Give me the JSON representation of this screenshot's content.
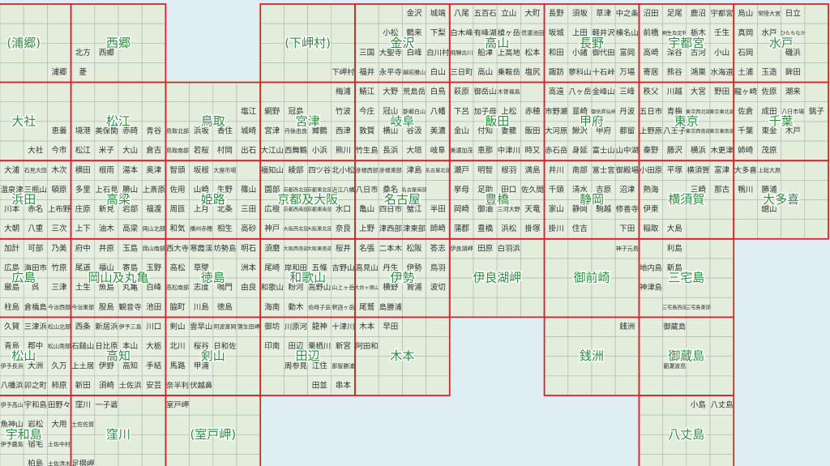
{
  "map_index": {
    "sheets": [
      [
        "(浦郷)",
        "西郷",
        null,
        "(下岬村)",
        "金沢",
        "高山",
        "長野",
        "宇都宮",
        "水戸"
      ],
      [
        "大社",
        "松江",
        "鳥取",
        "宮津",
        "岐阜",
        "飯田",
        "甲府",
        "東京",
        "千葉"
      ],
      [
        "浜田",
        "高梁",
        "姫路",
        "京都及大阪",
        "名古屋",
        "豊橋",
        "静岡",
        "横須賀",
        "大多喜"
      ],
      [
        "広島",
        "岡山及丸亀",
        "徳島",
        "和歌山",
        "伊勢",
        "伊良湖岬",
        "御前崎",
        "三宅島",
        null
      ],
      [
        "松山",
        "高知",
        "剣山",
        "田辺",
        "木本",
        null,
        "銭洲",
        "御蔵島",
        null
      ],
      [
        "宇和島",
        "窪川",
        "(室戸岬)",
        null,
        null,
        null,
        null,
        "八丈島",
        null
      ]
    ],
    "cells": [
      [
        null,
        null,
        null,
        null,
        null,
        null,
        null,
        null,
        null,
        null,
        null,
        null,
        null,
        null,
        null,
        null,
        null,
        "金沢",
        "城端",
        "八尾",
        "五百石",
        "立山",
        "大町",
        "長野",
        "須坂",
        "草津",
        "中之条",
        "沼田",
        "足尾",
        "鹿沼",
        "宇都宮",
        "烏山",
        "常陸大宮",
        "日立",
        null
      ],
      [
        null,
        null,
        null,
        null,
        null,
        null,
        null,
        null,
        null,
        null,
        null,
        null,
        null,
        null,
        null,
        null,
        "小松",
        "鶴来",
        "下梨",
        "白木峰",
        "有峰湖",
        "槍ヶ岳",
        "信濃池田",
        "坂城",
        "上田",
        "軽井沢",
        "榛名山",
        "前橋",
        "桐生及足利",
        "栃木",
        "壬生",
        "真岡",
        "水戸",
        "ひたちなか",
        null
      ],
      [
        null,
        null,
        null,
        "北方",
        "西郷",
        null,
        null,
        null,
        null,
        null,
        null,
        null,
        null,
        null,
        null,
        "三国",
        "大聖寺",
        "白峰",
        "白川村",
        "飛騨古川",
        "船津",
        "上高地",
        "松本",
        "和田",
        "小諸",
        "御代田",
        "富岡",
        "高崎",
        "深谷",
        "古河",
        "小山",
        "石岡",
        null,
        "磯浜",
        null
      ],
      [
        null,
        null,
        "浦郷",
        "菱",
        null,
        null,
        null,
        null,
        null,
        null,
        null,
        null,
        null,
        null,
        "下岬村",
        "福井",
        "永平寺",
        "越前勝山",
        "白山",
        "三日町",
        "高山",
        "乗鞍岳",
        "塩尻",
        "諏訪",
        "蓼科山",
        "十石峠",
        "万場",
        "寄居",
        "熊谷",
        "鴻巣",
        "水海道",
        "土浦",
        "玉造",
        "鉾田",
        null
      ],
      [
        null,
        null,
        null,
        null,
        null,
        null,
        null,
        null,
        null,
        null,
        null,
        null,
        null,
        null,
        "梅浦",
        "鯖江",
        "大野",
        "荒島岳",
        "白鳥",
        "萩原",
        "御岳山",
        "木曽福島",
        null,
        "高遠",
        "八ヶ岳",
        "金峰山",
        "三峰",
        "秩父",
        "川越",
        "大宮",
        "野田",
        "龍ヶ崎",
        "佐原",
        "潮来",
        null
      ],
      [
        null,
        null,
        null,
        null,
        null,
        null,
        null,
        null,
        null,
        null,
        "塩江",
        "網野",
        "冠島",
        null,
        "竹波",
        "今庄",
        "冠山",
        "能郷白山",
        "八幡",
        "下呂",
        "加子母",
        "上松",
        "赤穂",
        "市野瀬",
        "韮崎",
        "御岳昇仙峡",
        "丹波",
        "五日市",
        "青梅",
        "東京西北部",
        "東京東北部",
        "佐倉",
        "成田",
        "八日市場",
        "銚子"
      ],
      [
        null,
        null,
        "恵曇",
        "境港",
        "美保関",
        "赤碕",
        "青谷",
        "鳥取北部",
        "浜坂",
        "香住",
        "城崎",
        "宮津",
        "丹後由良",
        "舞鶴",
        "西津",
        "敦賀",
        "横山",
        "谷汲",
        "美濃",
        "金山",
        "付知",
        "妻籠",
        "飯田",
        "大河原",
        "鰍沢",
        "甲府",
        "都留",
        "上野原",
        "八王子",
        "東京西南部",
        "東京東南部",
        "千葉",
        "東金",
        "木戸",
        null
      ],
      [
        null,
        "大社",
        "今市",
        "松江",
        "米子",
        "大山",
        "倉吉",
        "鳥取南部",
        "若桜",
        "村岡",
        "出石",
        "大江山",
        "西舞鶴",
        "小浜",
        "熊川",
        "竹生島",
        "長浜",
        "大垣",
        "岐阜",
        "美濃加茂",
        "恵那",
        "中津川",
        "時又",
        "赤石岳",
        "身延",
        "富士山",
        "山中湖",
        "秦野",
        "藤沢",
        "横浜",
        "木更津",
        "姉崎",
        "茂原",
        null,
        null
      ],
      [
        "大浦",
        "石見大田",
        "木次",
        "横田",
        "根雨",
        "湯本",
        "奥津",
        "智頭",
        "坂根",
        "大屋市場",
        null,
        "福知山",
        "綾部",
        "四ツ谷",
        "北小松",
        "彦根西部",
        "彦根東部",
        "津島",
        "名古屋北部",
        "瀬戸",
        "明智",
        "根羽",
        "満島",
        "井川",
        "南部",
        "富士宮",
        "御殿場",
        "小田原",
        "平塚",
        "横須賀",
        "富津",
        "大多喜",
        "上総大原",
        null,
        null
      ],
      [
        "温泉津",
        "三瓶山",
        "頓原",
        "多里",
        "上石見",
        "勝山",
        "上斎原",
        "佐用",
        "山崎",
        "生野",
        "篠山",
        "園部",
        "京都西北部",
        "京都東北部",
        "近江八幡",
        "八日市",
        "桑名",
        "名古屋南部",
        null,
        "挙母",
        "足助",
        "田口",
        "佐久間",
        "千頭",
        "清水",
        "吉原",
        "沼津",
        "熱海",
        null,
        "三崎",
        "那古",
        "鴨川",
        "勝浦",
        null,
        null
      ],
      [
        "川本",
        "赤名",
        "上布野",
        "庄原",
        "新見",
        "岩部",
        "福渡",
        "周匝",
        "上月",
        "北条",
        "三田",
        "広根",
        "京都西南部",
        "京都東南部",
        "水口",
        "亀山",
        "四日市",
        "蟹江",
        "半田",
        "岡崎",
        "御油",
        "三河大野",
        "天竜",
        "家山",
        "静岡",
        "駒越",
        "修善寺",
        "伊東",
        null,
        null,
        null,
        null,
        "館山",
        null,
        null
      ],
      [
        "大朝",
        "八重",
        "三次",
        "上下",
        "油木",
        "高梁",
        "岡山北部",
        "和気",
        "播州赤穂",
        "相生",
        "高砂",
        "神戸",
        "大阪西北部",
        "大阪東北部",
        "奈良",
        "上野",
        "津西部",
        "津東部",
        "師崎",
        "蒲郡",
        "豊橋",
        "浜松",
        "掛塚",
        "掛川",
        "住吉",
        null,
        "下田",
        "稲取",
        "大島",
        null,
        null,
        null,
        null,
        null,
        null
      ],
      [
        "加計",
        "可部",
        "乃美",
        "府中",
        "井原",
        "玉島",
        "岡山南部",
        "西大寺",
        "寒霞渓",
        "坊勢島",
        "明石",
        "須磨",
        "大阪西南部",
        "大阪東南部",
        "桜井",
        "名張",
        "二本木",
        "松阪",
        "答志",
        "伊良湖岬",
        "田原",
        "白羽浜",
        null,
        null,
        null,
        null,
        "神子元島",
        null,
        "利島",
        null,
        null,
        null,
        null,
        null,
        null
      ],
      [
        "広島",
        "海田市",
        "竹原",
        "尾道",
        "福山",
        "寄島",
        "玉野",
        "高松",
        "草壁",
        null,
        "洲本",
        "尾崎",
        "岸和田",
        "五條",
        "吉野山",
        "高見山",
        "丹生",
        "伊勢",
        "鳥羽",
        null,
        null,
        null,
        null,
        null,
        null,
        null,
        null,
        "地内島",
        "新島",
        null,
        null,
        null,
        null,
        null,
        null
      ],
      [
        "厳島",
        "呉",
        "三津",
        "土生",
        "魚島",
        "丸亀",
        "白峰",
        "高松南部",
        "志度",
        "鳴門",
        "由良",
        "和歌山",
        "粉河",
        "高野山",
        "山上ヶ岳",
        "大台ヶ原山",
        "横野",
        "贄浦",
        "波切",
        null,
        null,
        null,
        null,
        null,
        null,
        null,
        null,
        "神津島",
        null,
        null,
        null,
        null,
        null,
        null,
        null
      ],
      [
        "柱島",
        "倉橋島",
        "今治西部",
        "今治東部",
        "股島",
        "観音寺",
        "池田",
        "脇町",
        "川島",
        "徳島",
        null,
        "海南",
        "動木",
        "伯母子岳",
        "釈迦ヶ岳",
        "尾鷲",
        "島勝浦",
        null,
        null,
        null,
        null,
        null,
        null,
        null,
        null,
        null,
        null,
        null,
        "三宅島西部",
        "三宅島東部",
        null,
        null,
        null,
        null,
        null
      ],
      [
        "久賀",
        "三津浜",
        "松山北部",
        "西条",
        "新居浜",
        "伊予三島",
        "川口",
        "剣山",
        "雲早山",
        "阿波富岡",
        "蒲生田岬",
        "御坊",
        "川原河",
        "龍神",
        "十津川",
        "木本",
        "早田",
        null,
        null,
        null,
        null,
        null,
        null,
        null,
        null,
        null,
        "銭洲",
        null,
        "御蔵島",
        null,
        null,
        null,
        null,
        null,
        null
      ],
      [
        "青島",
        "郡中",
        "松山南部",
        "石鎚山",
        "日比原",
        "本山",
        "大栃",
        "北川",
        "桜谷",
        "日和佐",
        null,
        "印南",
        "田辺",
        "栗栖川",
        "新宮",
        "阿田和",
        null,
        null,
        null,
        null,
        null,
        null,
        null,
        null,
        null,
        null,
        null,
        null,
        null,
        null,
        null,
        null,
        null,
        null,
        null
      ],
      [
        "伊予長浜",
        "大洲",
        "久万",
        "上土居",
        "伊野",
        "高知",
        "手結",
        "馬路",
        "甲浦",
        null,
        null,
        null,
        "周参見",
        "江住",
        "那智勝浦",
        null,
        null,
        null,
        null,
        null,
        null,
        null,
        null,
        null,
        null,
        null,
        null,
        null,
        "藺灘波島",
        null,
        null,
        null,
        null,
        null,
        null
      ],
      [
        "八幡浜",
        "卯之町",
        "柿原",
        "新田",
        "須崎",
        "土佐浜",
        "安芸",
        "奈半利",
        "伏越鼻",
        null,
        null,
        null,
        null,
        "田並",
        "串本",
        null,
        null,
        null,
        null,
        null,
        null,
        null,
        null,
        null,
        null,
        null,
        null,
        null,
        null,
        null,
        null,
        null,
        null,
        null,
        null
      ],
      [
        "伊予高山",
        "宇和島",
        "田野々",
        "窪川",
        "一子碆",
        null,
        null,
        "室戸岬",
        null,
        null,
        null,
        null,
        null,
        null,
        null,
        null,
        null,
        null,
        null,
        null,
        null,
        null,
        null,
        null,
        null,
        null,
        null,
        null,
        null,
        "小島",
        "八丈島",
        null,
        null,
        null,
        null
      ],
      [
        "魚神山",
        "岩松",
        "大用",
        "土佐佐賀",
        null,
        null,
        null,
        null,
        null,
        null,
        null,
        null,
        null,
        null,
        null,
        null,
        null,
        null,
        null,
        null,
        null,
        null,
        null,
        null,
        null,
        null,
        null,
        null,
        null,
        null,
        null,
        null,
        null,
        null,
        null
      ],
      [
        "伊予鹿島",
        "宿毛",
        "土佐中村",
        null,
        null,
        null,
        null,
        null,
        null,
        null,
        null,
        null,
        null,
        null,
        null,
        null,
        null,
        null,
        null,
        null,
        null,
        null,
        null,
        null,
        null,
        null,
        null,
        null,
        null,
        null,
        null,
        null,
        null,
        null,
        null
      ],
      [
        null,
        "柏島",
        "土佐清水",
        "足摺岬",
        null,
        null,
        null,
        null,
        null,
        null,
        null,
        null,
        null,
        null,
        null,
        null,
        null,
        null,
        null,
        null,
        null,
        null,
        null,
        null,
        null,
        null,
        null,
        null,
        null,
        null,
        null,
        null,
        null,
        null,
        null
      ]
    ]
  }
}
